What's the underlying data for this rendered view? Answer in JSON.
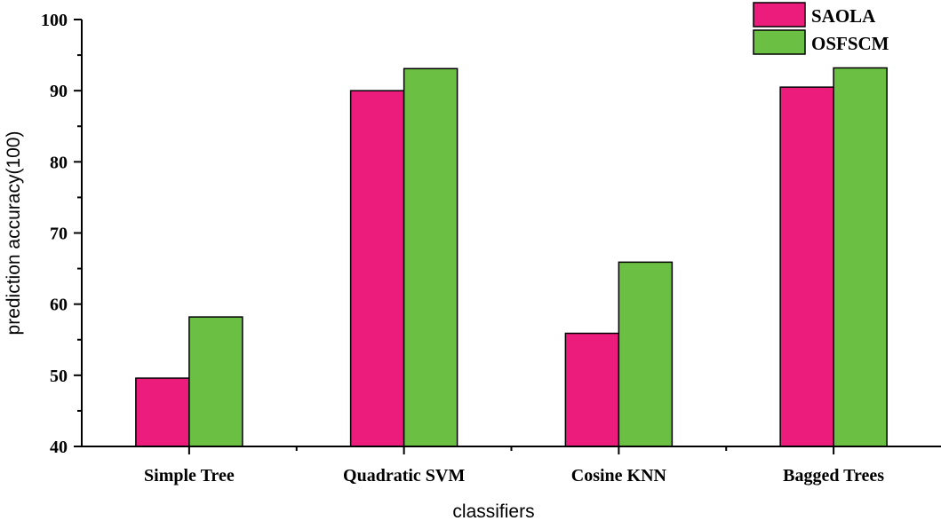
{
  "chart_data": {
    "type": "bar",
    "title": "",
    "xlabel": "classifiers",
    "ylabel": "prediction accuracy(100)",
    "categories": [
      "Simple Tree",
      "Quadratic SVM",
      "Cosine KNN",
      "Bagged Trees"
    ],
    "series": [
      {
        "name": "SAOLA",
        "color": "#ec1c7c",
        "values": [
          49.6,
          90.0,
          55.9,
          90.5
        ]
      },
      {
        "name": "OSFSCM",
        "color": "#6bbf43",
        "values": [
          58.2,
          93.1,
          65.9,
          93.2
        ]
      }
    ],
    "ylim": [
      40,
      100
    ],
    "yticks": [
      40,
      50,
      60,
      70,
      80,
      90,
      100
    ],
    "yminor_step": 5,
    "grid": false,
    "legend_position": "top-right"
  }
}
